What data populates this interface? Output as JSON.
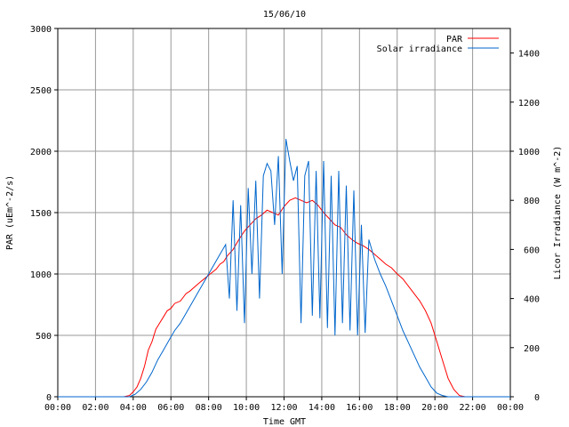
{
  "chart_data": {
    "type": "line",
    "title": "15/06/10",
    "xlabel": "Time GMT",
    "ylabel_left": "PAR (uEm^-2/s)",
    "ylabel_right": "Licor Irradiance (W m^-2)",
    "xlim": [
      0,
      24
    ],
    "ylim_left": [
      0,
      3000
    ],
    "ylim_right": [
      0,
      1500
    ],
    "x_ticks": [
      "00:00",
      "02:00",
      "04:00",
      "06:00",
      "08:00",
      "10:00",
      "12:00",
      "14:00",
      "16:00",
      "18:00",
      "20:00",
      "22:00",
      "00:00"
    ],
    "y_ticks_left": [
      "0",
      "500",
      "1000",
      "1500",
      "2000",
      "2500",
      "3000"
    ],
    "y_ticks_right": [
      "0",
      "200",
      "400",
      "600",
      "800",
      "1000",
      "1200",
      "1400"
    ],
    "grid": true,
    "legend_position": "top-right",
    "series": [
      {
        "name": "PAR",
        "axis": "left",
        "color": "#ff0000",
        "x": [
          0,
          3.5,
          3.8,
          4.0,
          4.2,
          4.4,
          4.6,
          4.8,
          5.0,
          5.2,
          5.4,
          5.6,
          5.8,
          6.0,
          6.2,
          6.5,
          6.8,
          7.0,
          7.3,
          7.6,
          8.0,
          8.4,
          8.6,
          8.8,
          9.0,
          9.3,
          9.6,
          9.9,
          10.2,
          10.5,
          10.8,
          11.1,
          11.4,
          11.7,
          12.0,
          12.3,
          12.6,
          12.9,
          13.2,
          13.5,
          13.8,
          14.1,
          14.4,
          14.7,
          15.0,
          15.3,
          15.6,
          15.9,
          16.2,
          16.5,
          16.8,
          17.1,
          17.4,
          17.7,
          18.0,
          18.3,
          18.6,
          18.9,
          19.2,
          19.5,
          19.8,
          20.1,
          20.4,
          20.7,
          21.0,
          21.3,
          21.6,
          24
        ],
        "y": [
          0,
          0,
          10,
          40,
          80,
          150,
          250,
          380,
          450,
          550,
          600,
          650,
          700,
          720,
          760,
          780,
          840,
          860,
          900,
          940,
          990,
          1040,
          1080,
          1100,
          1150,
          1200,
          1280,
          1350,
          1400,
          1450,
          1480,
          1520,
          1500,
          1480,
          1550,
          1600,
          1620,
          1600,
          1580,
          1600,
          1560,
          1500,
          1450,
          1400,
          1380,
          1320,
          1280,
          1250,
          1230,
          1200,
          1160,
          1120,
          1080,
          1050,
          1000,
          960,
          900,
          840,
          780,
          700,
          600,
          450,
          300,
          150,
          60,
          10,
          0,
          0
        ]
      },
      {
        "name": "Solar irradiance",
        "axis": "right",
        "color": "#0066cc",
        "x": [
          0,
          3.8,
          4.1,
          4.4,
          4.7,
          5.0,
          5.3,
          5.6,
          5.9,
          6.2,
          6.5,
          6.8,
          7.1,
          7.4,
          7.7,
          8.0,
          8.3,
          8.6,
          8.9,
          9.1,
          9.3,
          9.5,
          9.7,
          9.9,
          10.1,
          10.3,
          10.5,
          10.7,
          10.9,
          11.1,
          11.3,
          11.5,
          11.7,
          11.9,
          12.1,
          12.3,
          12.5,
          12.7,
          12.9,
          13.1,
          13.3,
          13.5,
          13.7,
          13.9,
          14.1,
          14.3,
          14.5,
          14.7,
          14.9,
          15.1,
          15.3,
          15.5,
          15.7,
          15.9,
          16.1,
          16.3,
          16.5,
          16.8,
          17.1,
          17.4,
          17.7,
          18.0,
          18.3,
          18.6,
          18.9,
          19.2,
          19.5,
          19.8,
          20.1,
          20.4,
          20.7,
          21.0,
          24
        ],
        "y": [
          0,
          0,
          10,
          30,
          60,
          100,
          150,
          190,
          230,
          270,
          300,
          340,
          380,
          420,
          460,
          500,
          540,
          580,
          620,
          400,
          800,
          350,
          780,
          300,
          850,
          500,
          880,
          400,
          900,
          950,
          920,
          700,
          980,
          500,
          1050,
          960,
          880,
          940,
          300,
          900,
          960,
          330,
          920,
          320,
          960,
          280,
          900,
          250,
          920,
          300,
          860,
          270,
          840,
          250,
          700,
          260,
          640,
          560,
          500,
          450,
          390,
          330,
          270,
          220,
          170,
          120,
          80,
          40,
          15,
          5,
          0,
          0,
          0
        ]
      }
    ]
  }
}
